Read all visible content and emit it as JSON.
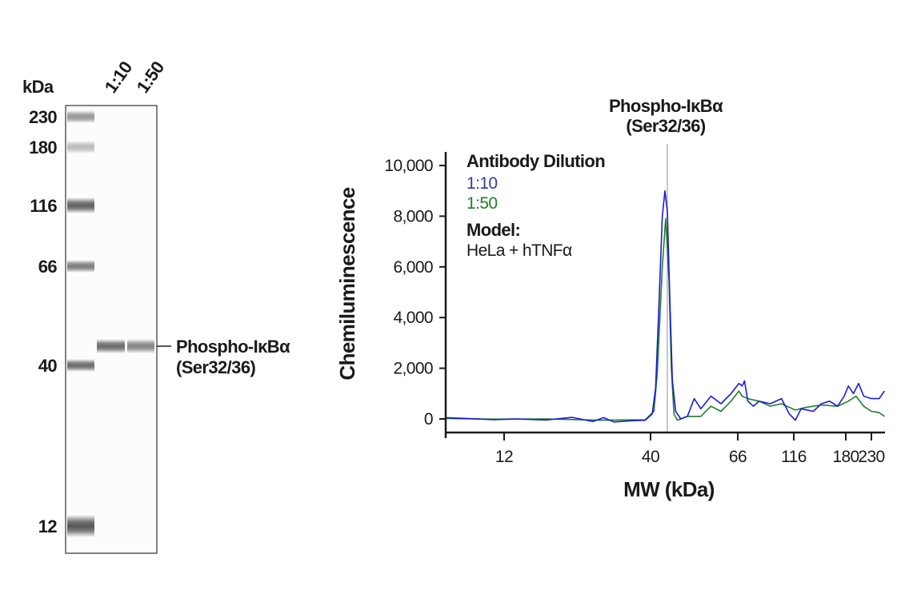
{
  "gel": {
    "unit_label": "kDa",
    "lane_labels": [
      "1:10",
      "1:50"
    ],
    "ladder_labels": [
      "230",
      "180",
      "116",
      "66",
      "40",
      "12"
    ],
    "ladder_values": [
      230,
      180,
      116,
      66,
      40,
      12
    ],
    "ladder_intensity": [
      0.55,
      0.35,
      0.85,
      0.7,
      0.8,
      0.9
    ],
    "sample_band_intensity": [
      0.8,
      0.65
    ],
    "band_label_line1": "Phospho-IκBα",
    "band_label_line2": "(Ser32/36)"
  },
  "chart_data": {
    "type": "line",
    "title_line1": "Phospho-IκBα",
    "title_line2": "(Ser32/36)",
    "xlabel": "MW (kDa)",
    "ylabel": "Chemiluminescence",
    "x_scale": "nonlinear (kDa)",
    "xlim": [
      1,
      256
    ],
    "ylim": [
      -300,
      10500
    ],
    "x_ticks": [
      12,
      40,
      66,
      116,
      180,
      230
    ],
    "x_tick_labels": [
      "12",
      "40",
      "66",
      "116",
      "180",
      "230"
    ],
    "y_ticks": [
      0,
      2000,
      4000,
      6000,
      8000,
      10000
    ],
    "y_tick_labels": [
      "0",
      "2,000",
      "4,000",
      "6,000",
      "8,000",
      "10,000"
    ],
    "marker_line_kDa": 45,
    "grid": false,
    "legend": {
      "title": "Antibody Dilution",
      "entries": [
        "1:10",
        "1:50"
      ],
      "model_title": "Model:",
      "model_text": "HeLa + hTNFα",
      "placement": "top-left"
    },
    "series": [
      {
        "name": "1:10",
        "color": "#1a1adb",
        "x": [
          1,
          5,
          10,
          14,
          20,
          25,
          29,
          31,
          33,
          36,
          39,
          40.5,
          41.5,
          42.5,
          43.5,
          44.3,
          45,
          45.8,
          46.5,
          47.5,
          49,
          51,
          53,
          55,
          58,
          61,
          64,
          67,
          70,
          72,
          75,
          80,
          85,
          95,
          105,
          112,
          118,
          125,
          140,
          150,
          160,
          170,
          178,
          185,
          195,
          205,
          215,
          230,
          245,
          255
        ],
        "y": [
          50,
          20,
          -30,
          0,
          -40,
          60,
          -100,
          50,
          -120,
          -80,
          -50,
          200,
          1200,
          4500,
          8000,
          9000,
          8200,
          4500,
          1500,
          300,
          0,
          100,
          800,
          400,
          900,
          600,
          1000,
          1400,
          1300,
          1500,
          700,
          500,
          700,
          600,
          800,
          200,
          -50,
          400,
          300,
          600,
          700,
          500,
          900,
          1300,
          1000,
          1400,
          900,
          800,
          800,
          1100
        ]
      },
      {
        "name": "1:50",
        "color": "#1f7f2a",
        "x": [
          1,
          10,
          20,
          30,
          39,
          41,
          42,
          43.5,
          44.5,
          45.5,
          46.2,
          47,
          48,
          51,
          55,
          58,
          61,
          64,
          67,
          70,
          75,
          85,
          95,
          105,
          118,
          130,
          150,
          170,
          185,
          200,
          215,
          230,
          245,
          255
        ],
        "y": [
          20,
          -10,
          0,
          -50,
          -30,
          300,
          1800,
          6000,
          7900,
          5500,
          2000,
          200,
          -50,
          100,
          100,
          500,
          300,
          700,
          1100,
          900,
          800,
          700,
          500,
          600,
          350,
          450,
          550,
          500,
          700,
          900,
          500,
          300,
          250,
          100
        ]
      }
    ],
    "colors": {
      "axis": "#1a1a1a",
      "marker_line": "#aaaaaa"
    }
  }
}
